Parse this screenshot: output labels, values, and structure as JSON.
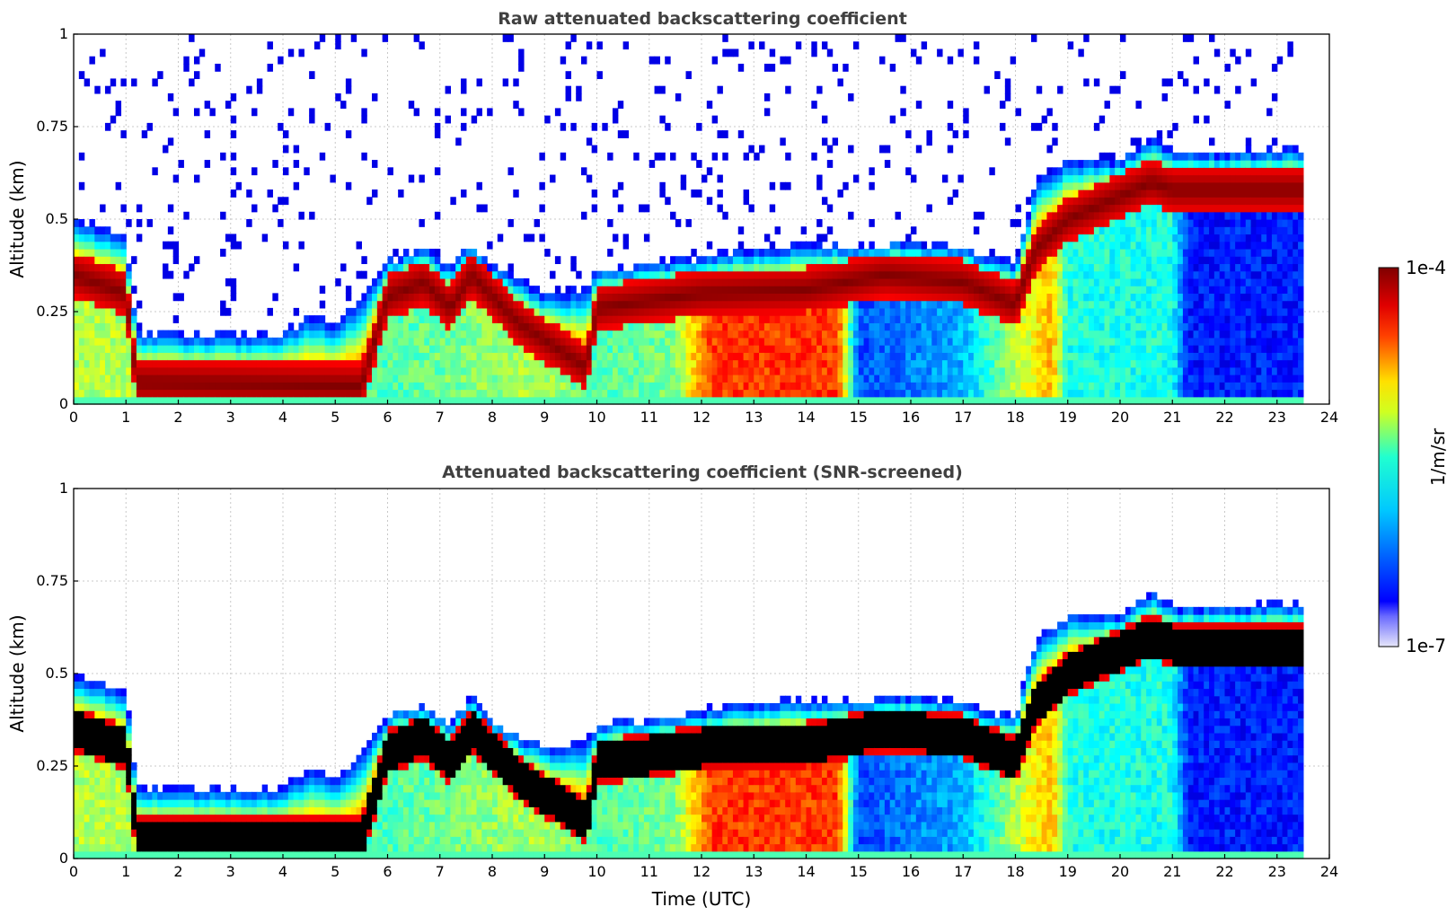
{
  "chart_data": [
    {
      "type": "heatmap",
      "title": "Raw attenuated backscattering coefficient",
      "xlabel": "",
      "ylabel": "Altitude (km)",
      "xlim": [
        0,
        24
      ],
      "ylim": [
        0,
        1
      ],
      "x_ticks": [
        "0",
        "1",
        "2",
        "3",
        "4",
        "5",
        "6",
        "7",
        "8",
        "9",
        "10",
        "11",
        "12",
        "13",
        "14",
        "15",
        "16",
        "17",
        "18",
        "19",
        "20",
        "21",
        "22",
        "23",
        "24"
      ],
      "y_ticks": [
        "0",
        "0.25",
        "0.5",
        "0.75",
        "1"
      ],
      "data_end_time": 23.5,
      "noise": true,
      "layer_top_km": [
        {
          "t": 0,
          "top": 0.5
        },
        {
          "t": 0.5,
          "top": 0.48
        },
        {
          "t": 1.0,
          "top": 0.45
        },
        {
          "t": 1.2,
          "top": 0.2
        },
        {
          "t": 2.0,
          "top": 0.19
        },
        {
          "t": 3.0,
          "top": 0.19
        },
        {
          "t": 4.0,
          "top": 0.19
        },
        {
          "t": 4.5,
          "top": 0.24
        },
        {
          "t": 5.0,
          "top": 0.22
        },
        {
          "t": 5.6,
          "top": 0.3
        },
        {
          "t": 6.0,
          "top": 0.39
        },
        {
          "t": 6.7,
          "top": 0.42
        },
        {
          "t": 7.2,
          "top": 0.37
        },
        {
          "t": 7.6,
          "top": 0.44
        },
        {
          "t": 8.0,
          "top": 0.37
        },
        {
          "t": 9.0,
          "top": 0.3
        },
        {
          "t": 9.8,
          "top": 0.31
        },
        {
          "t": 10.0,
          "top": 0.36
        },
        {
          "t": 11.0,
          "top": 0.38
        },
        {
          "t": 12.0,
          "top": 0.4
        },
        {
          "t": 13.0,
          "top": 0.42
        },
        {
          "t": 14.0,
          "top": 0.43
        },
        {
          "t": 15.0,
          "top": 0.43
        },
        {
          "t": 16.0,
          "top": 0.44
        },
        {
          "t": 17.0,
          "top": 0.42
        },
        {
          "t": 18.0,
          "top": 0.38
        },
        {
          "t": 18.4,
          "top": 0.6
        },
        {
          "t": 19.0,
          "top": 0.66
        },
        {
          "t": 20.0,
          "top": 0.66
        },
        {
          "t": 20.6,
          "top": 0.72
        },
        {
          "t": 21.0,
          "top": 0.68
        },
        {
          "t": 22.0,
          "top": 0.68
        },
        {
          "t": 23.5,
          "top": 0.69
        }
      ],
      "peak_layer_km": [
        {
          "t": 0,
          "peak": 0.35
        },
        {
          "t": 1.0,
          "peak": 0.3
        },
        {
          "t": 1.2,
          "peak": 0.06
        },
        {
          "t": 5.5,
          "peak": 0.05
        },
        {
          "t": 6.0,
          "peak": 0.29
        },
        {
          "t": 6.7,
          "peak": 0.33
        },
        {
          "t": 7.2,
          "peak": 0.26
        },
        {
          "t": 7.6,
          "peak": 0.35
        },
        {
          "t": 8.5,
          "peak": 0.22
        },
        {
          "t": 9.8,
          "peak": 0.1
        },
        {
          "t": 10.0,
          "peak": 0.26
        },
        {
          "t": 11.0,
          "peak": 0.28
        },
        {
          "t": 12.0,
          "peak": 0.3
        },
        {
          "t": 14.0,
          "peak": 0.31
        },
        {
          "t": 15.5,
          "peak": 0.35
        },
        {
          "t": 17.0,
          "peak": 0.33
        },
        {
          "t": 18.0,
          "peak": 0.27
        },
        {
          "t": 18.4,
          "peak": 0.42
        },
        {
          "t": 19.0,
          "peak": 0.5
        },
        {
          "t": 20.6,
          "peak": 0.6
        },
        {
          "t": 21.0,
          "peak": 0.58
        },
        {
          "t": 23.5,
          "peak": 0.58
        }
      ],
      "below_layer_strength": [
        {
          "t": 0,
          "v": 0.55
        },
        {
          "t": 1.2,
          "v": 0.55
        },
        {
          "t": 6.0,
          "v": 0.45
        },
        {
          "t": 9.0,
          "v": 0.55
        },
        {
          "t": 10.0,
          "v": 0.45
        },
        {
          "t": 11.5,
          "v": 0.5
        },
        {
          "t": 12.2,
          "v": 0.82
        },
        {
          "t": 14.6,
          "v": 0.82
        },
        {
          "t": 15.0,
          "v": 0.2
        },
        {
          "t": 17.0,
          "v": 0.3
        },
        {
          "t": 18.0,
          "v": 0.55
        },
        {
          "t": 18.7,
          "v": 0.7
        },
        {
          "t": 19.0,
          "v": 0.4
        },
        {
          "t": 21.0,
          "v": 0.4
        },
        {
          "t": 21.3,
          "v": 0.15
        },
        {
          "t": 23.5,
          "v": 0.15
        }
      ]
    },
    {
      "type": "heatmap",
      "title": "Attenuated backscattering coefficient (SNR-screened)",
      "xlabel": "Time (UTC)",
      "ylabel": "Altitude (km)",
      "xlim": [
        0,
        24
      ],
      "ylim": [
        0,
        1
      ],
      "x_ticks": [
        "0",
        "1",
        "2",
        "3",
        "4",
        "5",
        "6",
        "7",
        "8",
        "9",
        "10",
        "11",
        "12",
        "13",
        "14",
        "15",
        "16",
        "17",
        "18",
        "19",
        "20",
        "21",
        "22",
        "23",
        "24"
      ],
      "y_ticks": [
        "0",
        "0.25",
        "0.5",
        "0.75",
        "1"
      ],
      "data_end_time": 23.5,
      "noise": false,
      "saturated_color": "#000000"
    }
  ],
  "colorbar": {
    "label": "1/m/sr",
    "max_label": "1e-4",
    "min_label": "1e-7",
    "colormap": "jet",
    "scale": "log"
  }
}
